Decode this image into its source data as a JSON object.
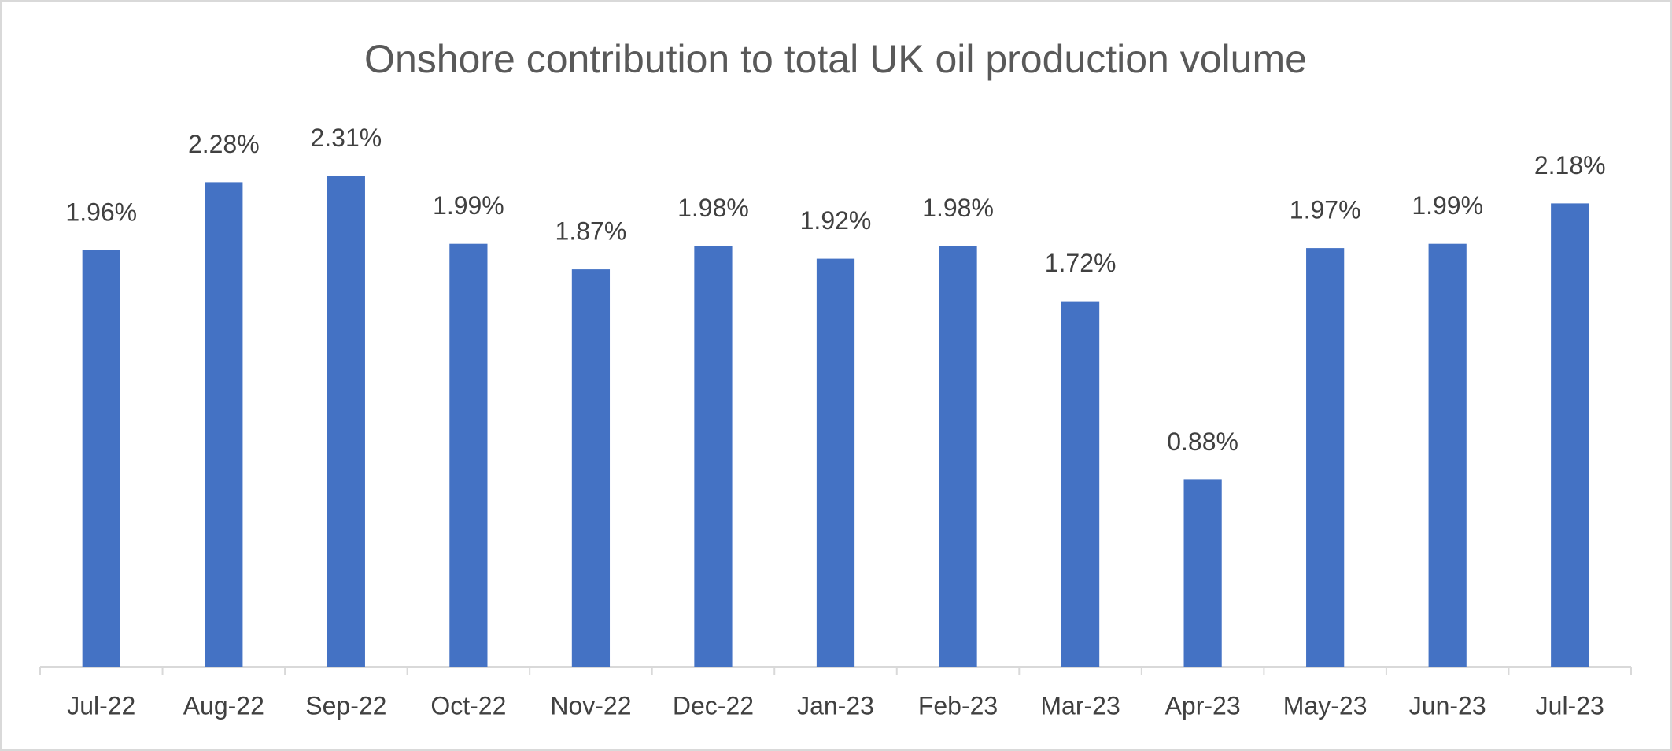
{
  "chart_data": {
    "type": "bar",
    "title": "Onshore contribution to total UK oil production volume",
    "categories": [
      "Jul-22",
      "Aug-22",
      "Sep-22",
      "Oct-22",
      "Nov-22",
      "Dec-22",
      "Jan-23",
      "Feb-23",
      "Mar-23",
      "Apr-23",
      "May-23",
      "Jun-23",
      "Jul-23"
    ],
    "values": [
      1.96,
      2.28,
      2.31,
      1.99,
      1.87,
      1.98,
      1.92,
      1.98,
      1.72,
      0.88,
      1.97,
      1.99,
      2.18
    ],
    "value_labels": [
      "1.96%",
      "2.28%",
      "2.31%",
      "1.99%",
      "1.87%",
      "1.98%",
      "1.92%",
      "1.98%",
      "1.72%",
      "0.88%",
      "1.97%",
      "1.99%",
      "2.18%"
    ],
    "color": "#4472c4",
    "ylim": [
      0,
      2.5
    ]
  }
}
